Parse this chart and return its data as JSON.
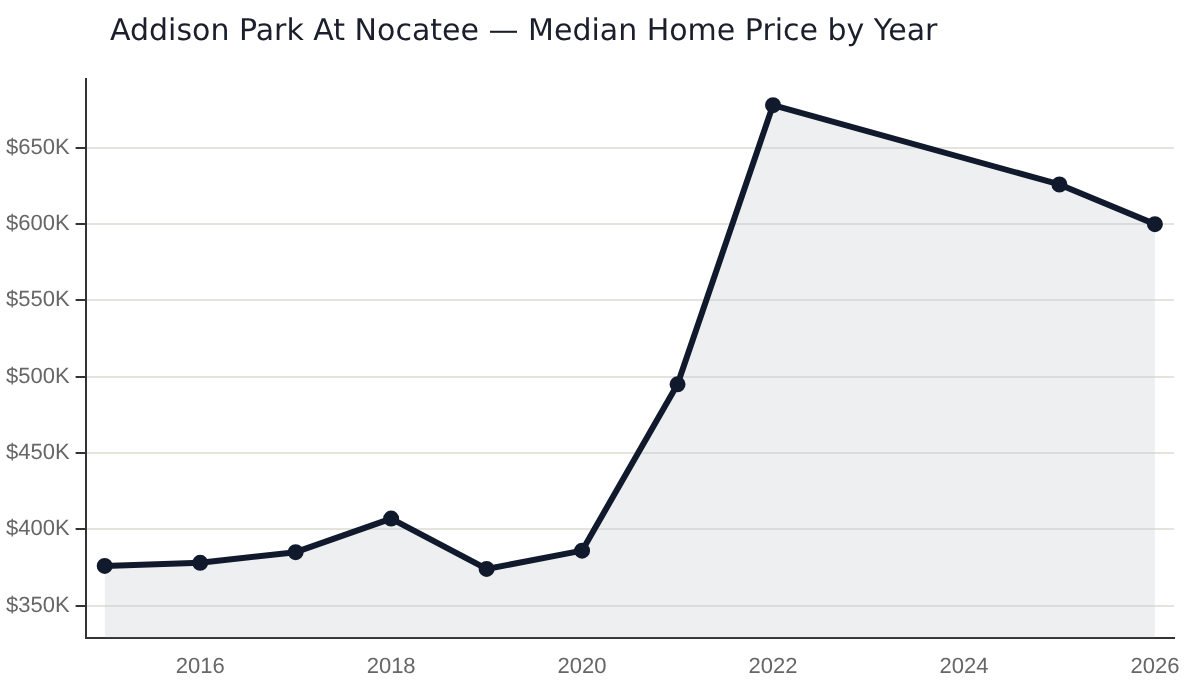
{
  "chart_data": {
    "type": "area",
    "title": "Addison Park At Nocatee — Median Home Price by Year",
    "x": [
      2015,
      2016,
      2017,
      2018,
      2019,
      2020,
      2021,
      2022,
      2025,
      2026
    ],
    "series": [
      {
        "color": "#111a2c",
        "values": [
          376000,
          378000,
          385000,
          407000,
          374000,
          386000,
          495000,
          678000,
          626000,
          600000
        ]
      }
    ],
    "xlim": [
      2014.8,
      2026.2
    ],
    "xticks": [
      2016,
      2018,
      2020,
      2022,
      2024,
      2026
    ],
    "ylim": [
      329000,
      695000
    ],
    "yticks": [
      {
        "value": 350000,
        "label": "$350K"
      },
      {
        "value": 400000,
        "label": "$400K"
      },
      {
        "value": 450000,
        "label": "$450K"
      },
      {
        "value": 500000,
        "label": "$500K"
      },
      {
        "value": 550000,
        "label": "$550K"
      },
      {
        "value": 600000,
        "label": "$600K"
      },
      {
        "value": 650000,
        "label": "$650K"
      }
    ],
    "grid": "y",
    "legend": false,
    "marker": "circle",
    "line_style": "solid"
  }
}
